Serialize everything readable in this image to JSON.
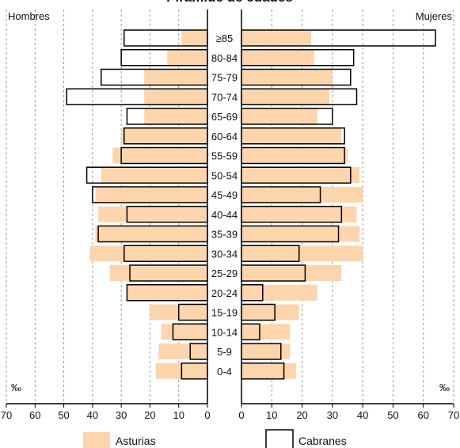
{
  "chart_data": {
    "type": "bar",
    "title": "Pirámide de edades",
    "left_label": "Hombres",
    "right_label": "Mujeres",
    "unit": "‰",
    "categories": [
      "≥85",
      "80-84",
      "75-79",
      "70-74",
      "65-69",
      "60-64",
      "55-59",
      "50-54",
      "45-49",
      "40-44",
      "35-39",
      "30-34",
      "25-29",
      "20-24",
      "15-19",
      "10-14",
      "5-9",
      "0-4"
    ],
    "x_ticks": [
      70,
      60,
      50,
      40,
      30,
      20,
      10,
      0
    ],
    "xlim": [
      0,
      70
    ],
    "grid": true,
    "legend": "bottom",
    "series": [
      {
        "name": "Asturias",
        "color": "#fdd5ad",
        "hombres": [
          9,
          14,
          22,
          22,
          22,
          30,
          33,
          37,
          39,
          38,
          39,
          41,
          34,
          28,
          20,
          16,
          17,
          18
        ],
        "mujeres": [
          23,
          24,
          30,
          29,
          25,
          33,
          35,
          39,
          40,
          38,
          39,
          40,
          33,
          25,
          19,
          16,
          16,
          18
        ]
      },
      {
        "name": "Cabranes",
        "color": "#ffffff",
        "hombres": [
          29,
          30,
          37,
          49,
          28,
          29,
          30,
          42,
          40,
          28,
          38,
          29,
          27,
          28,
          10,
          12,
          6,
          9
        ],
        "mujeres": [
          64,
          37,
          36,
          38,
          30,
          34,
          34,
          36,
          26,
          33,
          32,
          19,
          21,
          7,
          11,
          6,
          13,
          14
        ]
      }
    ]
  }
}
